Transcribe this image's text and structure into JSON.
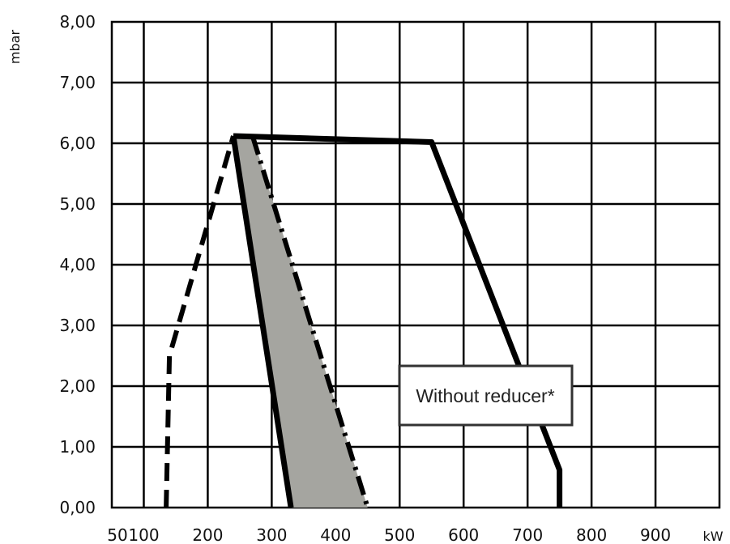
{
  "chart_data": {
    "type": "line",
    "ylabel": "mbar",
    "xlabel": "kW",
    "x_ticks": [
      "50",
      "100",
      "200",
      "300",
      "400",
      "500",
      "600",
      "700",
      "800",
      "900"
    ],
    "y_ticks": [
      "0,00",
      "1,00",
      "2,00",
      "3,00",
      "4,00",
      "5,00",
      "6,00",
      "7,00",
      "8,00"
    ],
    "xlim": [
      50,
      1000
    ],
    "ylim": [
      0,
      8
    ],
    "grid": true,
    "annotation": "Without reducer*",
    "series": [
      {
        "style": "solid-envelope",
        "points": [
          [
            240,
            6.12
          ],
          [
            550,
            6.02
          ],
          [
            750,
            0.62
          ],
          [
            750,
            0
          ]
        ]
      },
      {
        "style": "solid-left",
        "points": [
          [
            240,
            6.12
          ],
          [
            330,
            0
          ]
        ]
      },
      {
        "style": "dash-dot",
        "points": [
          [
            270,
            6.12
          ],
          [
            450,
            0
          ]
        ]
      },
      {
        "style": "dashed",
        "points": [
          [
            135,
            0
          ],
          [
            140,
            2.5
          ],
          [
            240,
            6.12
          ]
        ]
      },
      {
        "style": "shaded-area",
        "points": [
          [
            240,
            6.12
          ],
          [
            270,
            6.12
          ],
          [
            450,
            0
          ],
          [
            330,
            0
          ]
        ]
      }
    ],
    "colors": {
      "line": "#000000",
      "fill": "#a5a5a0",
      "grid": "#000000"
    }
  }
}
